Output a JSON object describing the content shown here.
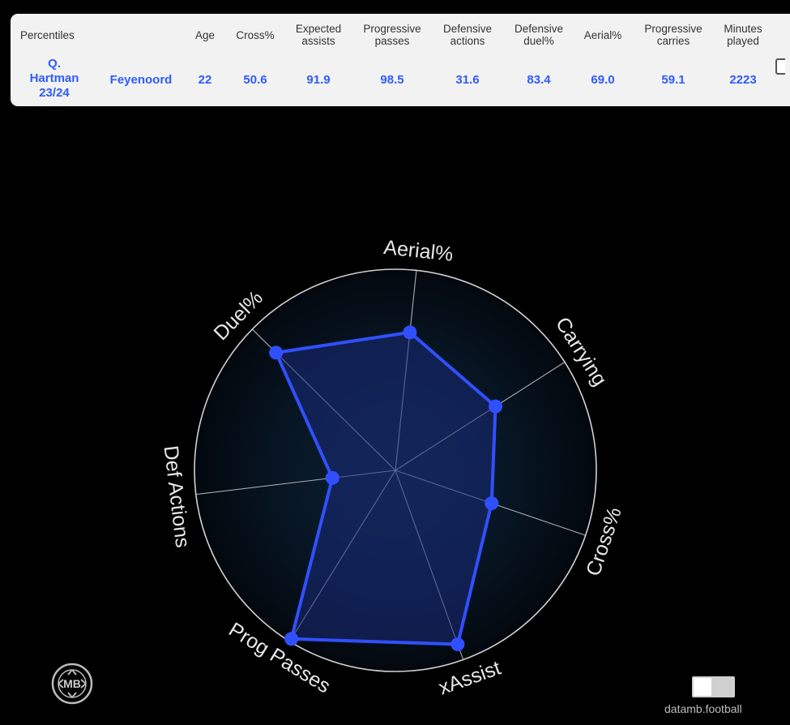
{
  "stats_table": {
    "corner_label": "Percentiles",
    "headers": {
      "age": "Age",
      "cross": "Cross%",
      "xa_line1": "Expected",
      "xa_line2": "assists",
      "pp_line1": "Progressive",
      "pp_line2": "passes",
      "da_line1": "Defensive",
      "da_line2": "actions",
      "dd_line1": "Defensive",
      "dd_line2": "duel%",
      "aerial": "Aerial%",
      "pc_line1": "Progressive",
      "pc_line2": "carries",
      "mp_line1": "Minutes",
      "mp_line2": "played"
    },
    "row": {
      "player_line1": "Q.",
      "player_line2": "Hartman",
      "player_line3": "23/24",
      "team": "Feyenoord",
      "age": "22",
      "cross": "50.6",
      "xa": "91.9",
      "pp": "98.5",
      "da": "31.6",
      "dd": "83.4",
      "aerial": "69.0",
      "pc": "59.1",
      "mp": "2223"
    }
  },
  "chart_data": {
    "type": "radar",
    "categories": [
      "Aerial%",
      "Carrying",
      "Cross%",
      "xAssist",
      "Prog Passes",
      "Def Actions",
      "Duel%"
    ],
    "series": [
      {
        "values": [
          69.0,
          59.1,
          50.6,
          91.9,
          98.5,
          31.6,
          83.4
        ]
      }
    ],
    "range": [
      0,
      100
    ],
    "grid": true,
    "colors": {
      "line": "#3050ff",
      "fill": "#1a2a7a",
      "grid": "#d0d0d0",
      "label": "#e8e8e8"
    }
  },
  "footer": {
    "logo_text": "MB",
    "credit": "datamb.football"
  }
}
